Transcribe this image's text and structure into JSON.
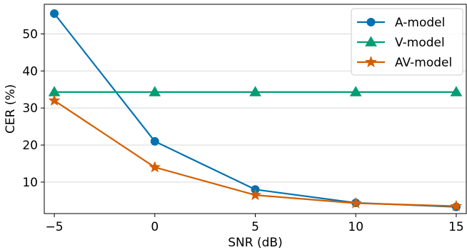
{
  "chart_data": {
    "type": "line",
    "title": "",
    "xlabel": "SNR (dB)",
    "ylabel": "CER (%)",
    "x": [
      -5,
      0,
      5,
      10,
      15
    ],
    "xlim": [
      -5.5,
      15.5
    ],
    "ylim": [
      1.5,
      58
    ],
    "xticks": [
      -5,
      0,
      5,
      10,
      15
    ],
    "xtick_labels": [
      "−5",
      "0",
      "5",
      "10",
      "15"
    ],
    "yticks": [
      10,
      20,
      30,
      40,
      50
    ],
    "ytick_labels": [
      "10",
      "20",
      "30",
      "40",
      "50"
    ],
    "grid": "horizontal",
    "legend_position": "top-right",
    "series": [
      {
        "name": "A-model",
        "values": [
          55.5,
          21.0,
          8.0,
          4.4,
          3.3
        ],
        "color": "#0072b2",
        "marker": "circle"
      },
      {
        "name": "V-model",
        "values": [
          34.3,
          34.3,
          34.3,
          34.3,
          34.3
        ],
        "color": "#009e73",
        "marker": "triangle"
      },
      {
        "name": "AV-model",
        "values": [
          32.0,
          14.0,
          6.5,
          4.3,
          3.5
        ],
        "color": "#d55e00",
        "marker": "star"
      }
    ]
  }
}
